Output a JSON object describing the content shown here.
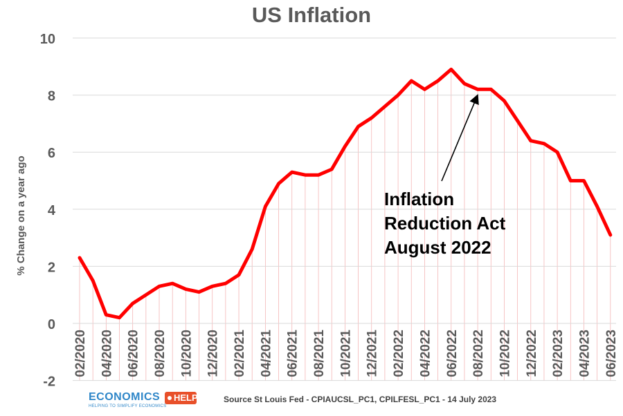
{
  "chart_data": {
    "type": "line",
    "title": "US Inflation",
    "ylabel": "% Change on a year ago",
    "xlabel": "",
    "ylim": [
      -2,
      10
    ],
    "yticks": [
      -2,
      0,
      2,
      4,
      6,
      8,
      10
    ],
    "grid": true,
    "legend": "none",
    "tick_labels": [
      "02/2020",
      "04/2020",
      "06/2020",
      "08/2020",
      "10/2020",
      "12/2020",
      "02/2021",
      "04/2021",
      "06/2021",
      "08/2021",
      "10/2021",
      "12/2021",
      "02/2022",
      "04/2022",
      "06/2022",
      "08/2022",
      "10/2022",
      "12/2022",
      "02/2023",
      "04/2023",
      "06/2023"
    ],
    "series": [
      {
        "x": [
          "02/2020",
          "03/2020",
          "04/2020",
          "05/2020",
          "06/2020",
          "07/2020",
          "08/2020",
          "09/2020",
          "10/2020",
          "11/2020",
          "12/2020",
          "01/2021",
          "02/2021",
          "03/2021",
          "04/2021",
          "05/2021",
          "06/2021",
          "07/2021",
          "08/2021",
          "09/2021",
          "10/2021",
          "11/2021",
          "12/2021",
          "01/2022",
          "02/2022",
          "03/2022",
          "04/2022",
          "05/2022",
          "06/2022",
          "07/2022",
          "08/2022",
          "09/2022",
          "10/2022",
          "11/2022",
          "12/2022",
          "01/2023",
          "02/2023",
          "03/2023",
          "04/2023",
          "05/2023",
          "06/2023"
        ],
        "values": [
          2.3,
          1.5,
          0.3,
          0.2,
          0.7,
          1.0,
          1.3,
          1.4,
          1.2,
          1.1,
          1.3,
          1.4,
          1.7,
          2.6,
          4.1,
          4.9,
          5.3,
          5.2,
          5.2,
          5.4,
          6.2,
          6.9,
          7.2,
          7.6,
          8.0,
          8.5,
          8.2,
          8.5,
          8.9,
          8.4,
          8.2,
          8.2,
          7.8,
          7.1,
          6.4,
          6.3,
          6.0,
          5.0,
          5.0,
          4.1,
          3.1
        ],
        "color": "#ff0000"
      }
    ],
    "annotation": {
      "lines": [
        "Inflation",
        "Reduction Act",
        "August 2022"
      ],
      "points_to": "08/2022"
    }
  },
  "source": "Source St Louis Fed - CPIAUCSL_PC1, CPILFESL_PC1 - 14 July 2023",
  "logo": {
    "word": "ECONOMICS",
    "tag": "HELP",
    "tagline": "HELPING TO SIMPLIFY ECONOMICS"
  }
}
